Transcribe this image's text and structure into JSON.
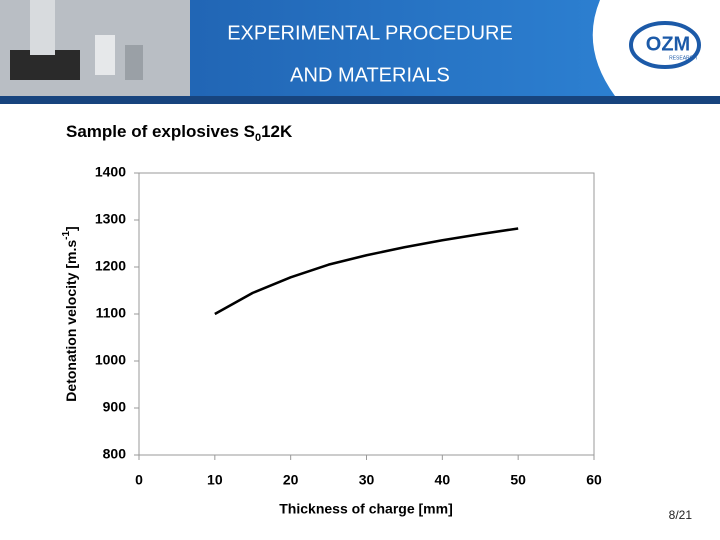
{
  "header": {
    "title_lines": [
      "EXPERIMENTAL PROCEDURE",
      "AND MATERIALS"
    ],
    "logo": "OZM",
    "logo_sub": "RESEARCH"
  },
  "subtitle": {
    "text": "Sample of explosives S",
    "subscript": "0",
    "rest": "12K"
  },
  "chart_data": {
    "type": "line",
    "x": [
      10,
      15,
      20,
      25,
      30,
      35,
      40,
      45,
      50
    ],
    "series": [
      {
        "color": "#000000",
        "values": [
          1100,
          1145,
          1178,
          1205,
          1225,
          1242,
          1257,
          1270,
          1282
        ]
      }
    ],
    "xlim": [
      0,
      60
    ],
    "xticks": [
      0,
      10,
      20,
      30,
      40,
      50,
      60
    ],
    "ylim": [
      800,
      1400
    ],
    "yticks": [
      800,
      900,
      1000,
      1100,
      1200,
      1300,
      1400
    ],
    "x_label": "Thickness of charge [mm]",
    "y_label": {
      "text": "Detonation velocity [m.s",
      "superscript": "-1",
      "rest": "]"
    }
  },
  "page_number": "8/21"
}
